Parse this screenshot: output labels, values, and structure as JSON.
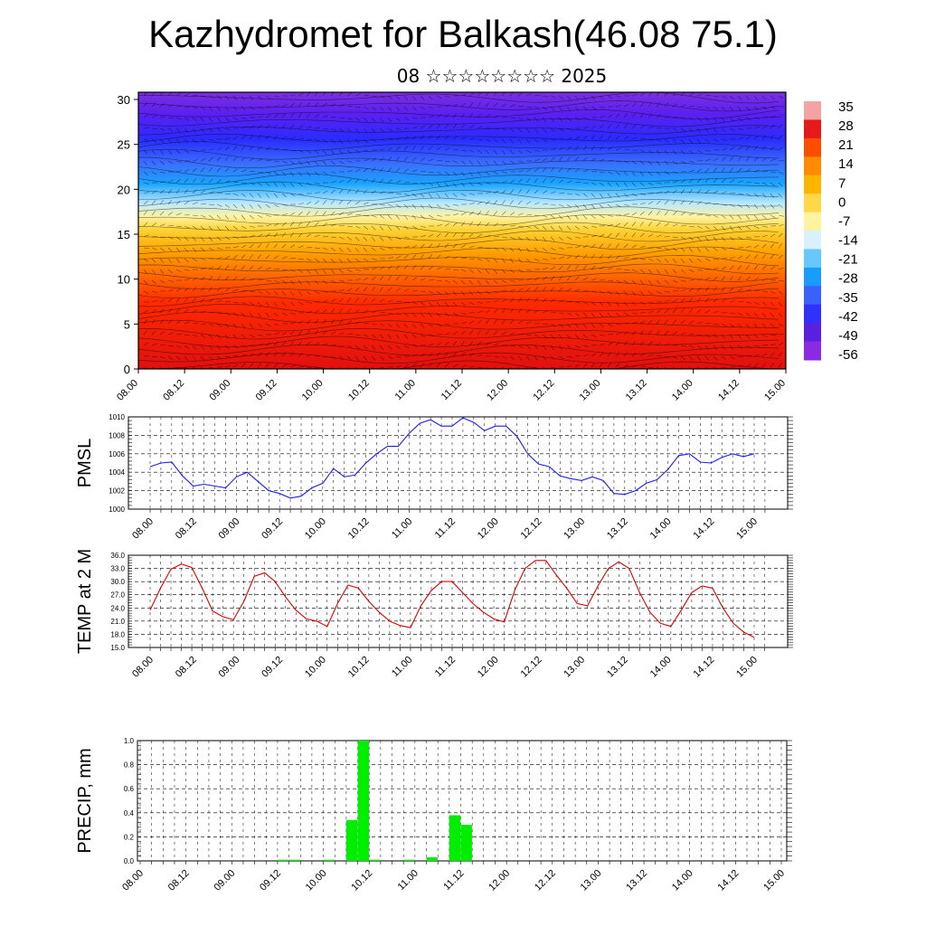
{
  "page": {
    "title": "Kazhydromet for Balkash(46.08 75.1)",
    "subtitle": "08 ☆☆☆☆☆☆☆☆ 2025"
  },
  "chart_data": [
    {
      "type": "heatmap",
      "name": "cross-section",
      "ylim": [
        0,
        30
      ],
      "yticks": [
        "0",
        "5",
        "10",
        "15",
        "20",
        "25",
        "30"
      ],
      "xticks": [
        "08.00",
        "08.12",
        "09.00",
        "09.12",
        "10.00",
        "10.12",
        "11.00",
        "11.12",
        "12.00",
        "12.12",
        "13.00",
        "13.12",
        "14.00",
        "14.12",
        "15.00"
      ],
      "colorbar": {
        "labels": [
          "35",
          "28",
          "21",
          "14",
          "7",
          "0",
          "-7",
          "-14",
          "-21",
          "-28",
          "-35",
          "-42",
          "-49",
          "-56"
        ],
        "colors": [
          "#f4a3a3",
          "#e61a1a",
          "#ff4d00",
          "#ff8c00",
          "#ffb400",
          "#ffd84a",
          "#fff2a0",
          "#d8f0ff",
          "#66c8ff",
          "#1a9cff",
          "#3a60ff",
          "#3030ff",
          "#5a20e0",
          "#8a2be2"
        ]
      }
    },
    {
      "type": "line",
      "ylabel": "PMSL",
      "ylim": [
        1000,
        1010
      ],
      "yticks": [
        "1000",
        "1002",
        "1004",
        "1006",
        "1008",
        "1010"
      ],
      "xticks": [
        "08.00",
        "08.12",
        "09.00",
        "09.12",
        "10.00",
        "10.12",
        "11.00",
        "11.12",
        "12.00",
        "12.12",
        "13.00",
        "13.12",
        "14.00",
        "14.12",
        "15.00"
      ],
      "color": "#1a1aff",
      "values": [
        1004.6,
        1005.0,
        1005.1,
        1003.6,
        1002.5,
        1002.7,
        1002.5,
        1002.3,
        1003.5,
        1004.0,
        1003.0,
        1002.0,
        1001.7,
        1001.2,
        1001.4,
        1002.3,
        1002.8,
        1004.4,
        1003.5,
        1003.7,
        1005.0,
        1006.0,
        1006.8,
        1006.8,
        1008.2,
        1009.3,
        1009.7,
        1009.0,
        1009.0,
        1009.9,
        1009.4,
        1008.5,
        1009.0,
        1009.0,
        1007.9,
        1006.0,
        1004.9,
        1004.6,
        1003.6,
        1003.3,
        1003.1,
        1003.5,
        1003.1,
        1001.7,
        1001.6,
        1002.0,
        1002.8,
        1003.2,
        1004.3,
        1005.8,
        1006.0,
        1005.1,
        1005.0,
        1005.6,
        1006.0,
        1005.7,
        1006.0
      ]
    },
    {
      "type": "line",
      "ylabel": "TEMP at 2 M",
      "ylim": [
        15,
        36
      ],
      "yticks": [
        "15.0",
        "18.0",
        "21.0",
        "24.0",
        "27.0",
        "30.0",
        "33.0",
        "36.0"
      ],
      "xticks": [
        "08.00",
        "08.12",
        "09.00",
        "09.12",
        "10.00",
        "10.12",
        "11.00",
        "11.12",
        "12.00",
        "12.12",
        "13.00",
        "13.12",
        "14.00",
        "14.12",
        "15.00"
      ],
      "color": "#dd0000",
      "values": [
        23.5,
        28.5,
        32.8,
        34.0,
        33.2,
        28.5,
        23.3,
        22.0,
        21.3,
        25.5,
        31.2,
        32.0,
        30.0,
        26.5,
        23.5,
        21.5,
        21.0,
        19.8,
        25.0,
        29.2,
        28.5,
        25.5,
        23.0,
        21.0,
        20.0,
        19.5,
        24.5,
        28.0,
        30.0,
        30.0,
        27.5,
        25.0,
        23.0,
        21.5,
        20.8,
        28.0,
        33.0,
        34.8,
        34.8,
        31.5,
        28.5,
        25.0,
        24.5,
        29.0,
        33.0,
        34.5,
        33.0,
        27.5,
        23.0,
        20.5,
        19.8,
        23.5,
        27.5,
        29.0,
        28.5,
        24.0,
        20.5,
        18.5,
        17.3
      ]
    },
    {
      "type": "bar",
      "ylabel": "PRECIP, mm",
      "ylim": [
        0,
        1.0
      ],
      "yticks": [
        "0.0",
        "0.2",
        "0.4",
        "0.6",
        "0.8",
        "1.0"
      ],
      "xticks": [
        "08.00",
        "08.12",
        "09.00",
        "09.12",
        "10.00",
        "10.12",
        "11.00",
        "11.12",
        "12.00",
        "12.12",
        "13.00",
        "13.12",
        "14.00",
        "14.12",
        "15.00"
      ],
      "color": "#00ee00",
      "values": [
        0,
        0,
        0,
        0,
        0,
        0,
        0,
        0,
        0,
        0,
        0,
        0,
        0.01,
        0.01,
        0,
        0,
        0.01,
        0,
        0.34,
        1.0,
        0.01,
        0,
        0,
        0.01,
        0,
        0.03,
        0,
        0.38,
        0.3,
        0,
        0,
        0,
        0,
        0,
        0,
        0,
        0,
        0,
        0,
        0,
        0,
        0,
        0,
        0,
        0,
        0,
        0,
        0,
        0,
        0,
        0,
        0,
        0,
        0,
        0,
        0
      ]
    }
  ]
}
